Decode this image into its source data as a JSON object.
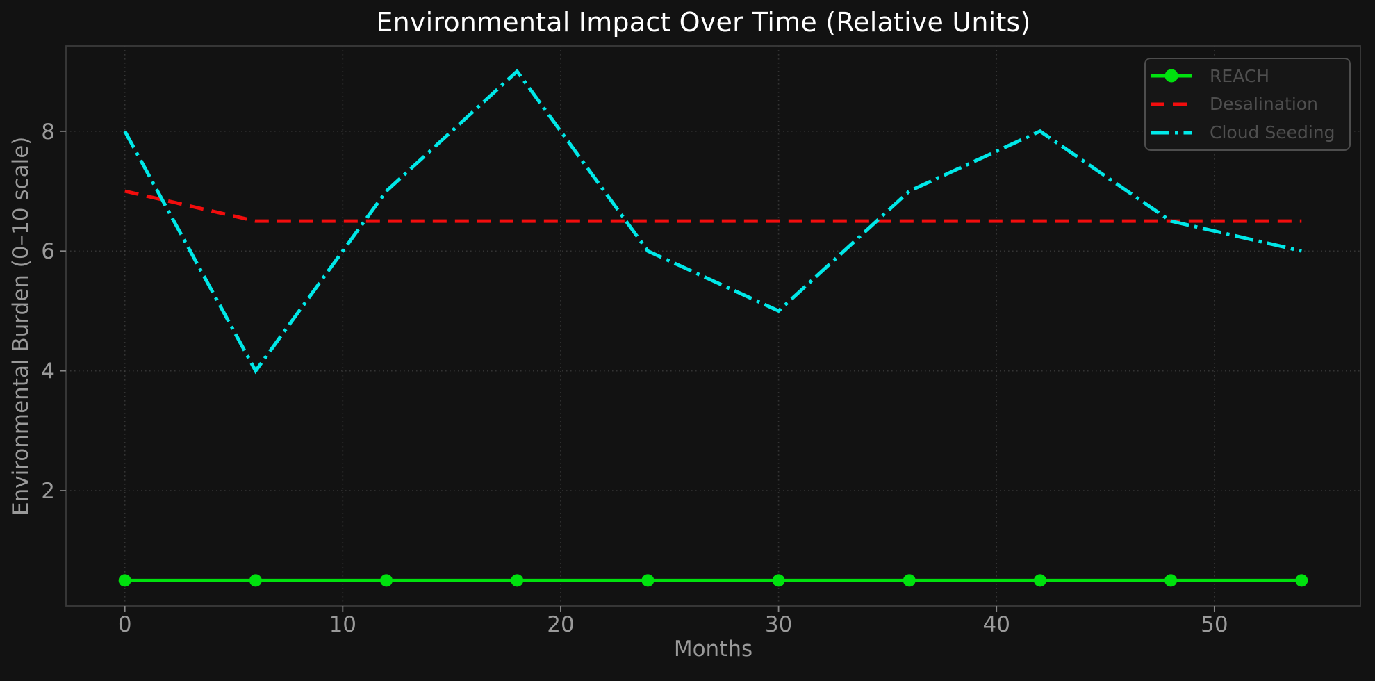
{
  "chart_data": {
    "type": "line",
    "title": "Environmental Impact Over Time (Relative Units)",
    "xlabel": "Months",
    "ylabel": "Environmental Burden (0–10 scale)",
    "x": [
      0,
      6,
      12,
      18,
      24,
      30,
      36,
      42,
      48,
      54
    ],
    "series": [
      {
        "name": "REACH",
        "values": [
          0.5,
          0.5,
          0.5,
          0.5,
          0.5,
          0.5,
          0.5,
          0.5,
          0.5,
          0.5
        ],
        "color": "#00e10e",
        "line_style": "solid",
        "marker": "circle"
      },
      {
        "name": "Desalination",
        "values": [
          7,
          6.5,
          6.5,
          6.5,
          6.5,
          6.5,
          6.5,
          6.5,
          6.5,
          6.5
        ],
        "color": "#f20d0d",
        "line_style": "dashed",
        "marker": "none"
      },
      {
        "name": "Cloud Seeding",
        "values": [
          8,
          4,
          7,
          9,
          6,
          5,
          7,
          8,
          6.5,
          6
        ],
        "color": "#00e8e8",
        "line_style": "dashdot",
        "marker": "none"
      }
    ],
    "xticks": [
      0,
      10,
      20,
      30,
      40,
      50
    ],
    "yticks": [
      2,
      4,
      6,
      8
    ],
    "xlim": [
      -2.7,
      56.7
    ],
    "ylim": [
      0.075,
      9.425
    ],
    "grid": true,
    "grid_style": "dotted",
    "legend_position": "upper right"
  },
  "style": {
    "background": "#121212",
    "title_color": "#ffffff",
    "tick_label_color": "#9a9a9a",
    "axis_label_color": "#9a9a9a",
    "legend_text_color": "#4f4f4f",
    "legend_border_color": "#4d4d4d",
    "legend_background": "#161616",
    "grid_color": "#565656",
    "spine_color": "#3a3a3a",
    "tick_color": "#878787"
  }
}
